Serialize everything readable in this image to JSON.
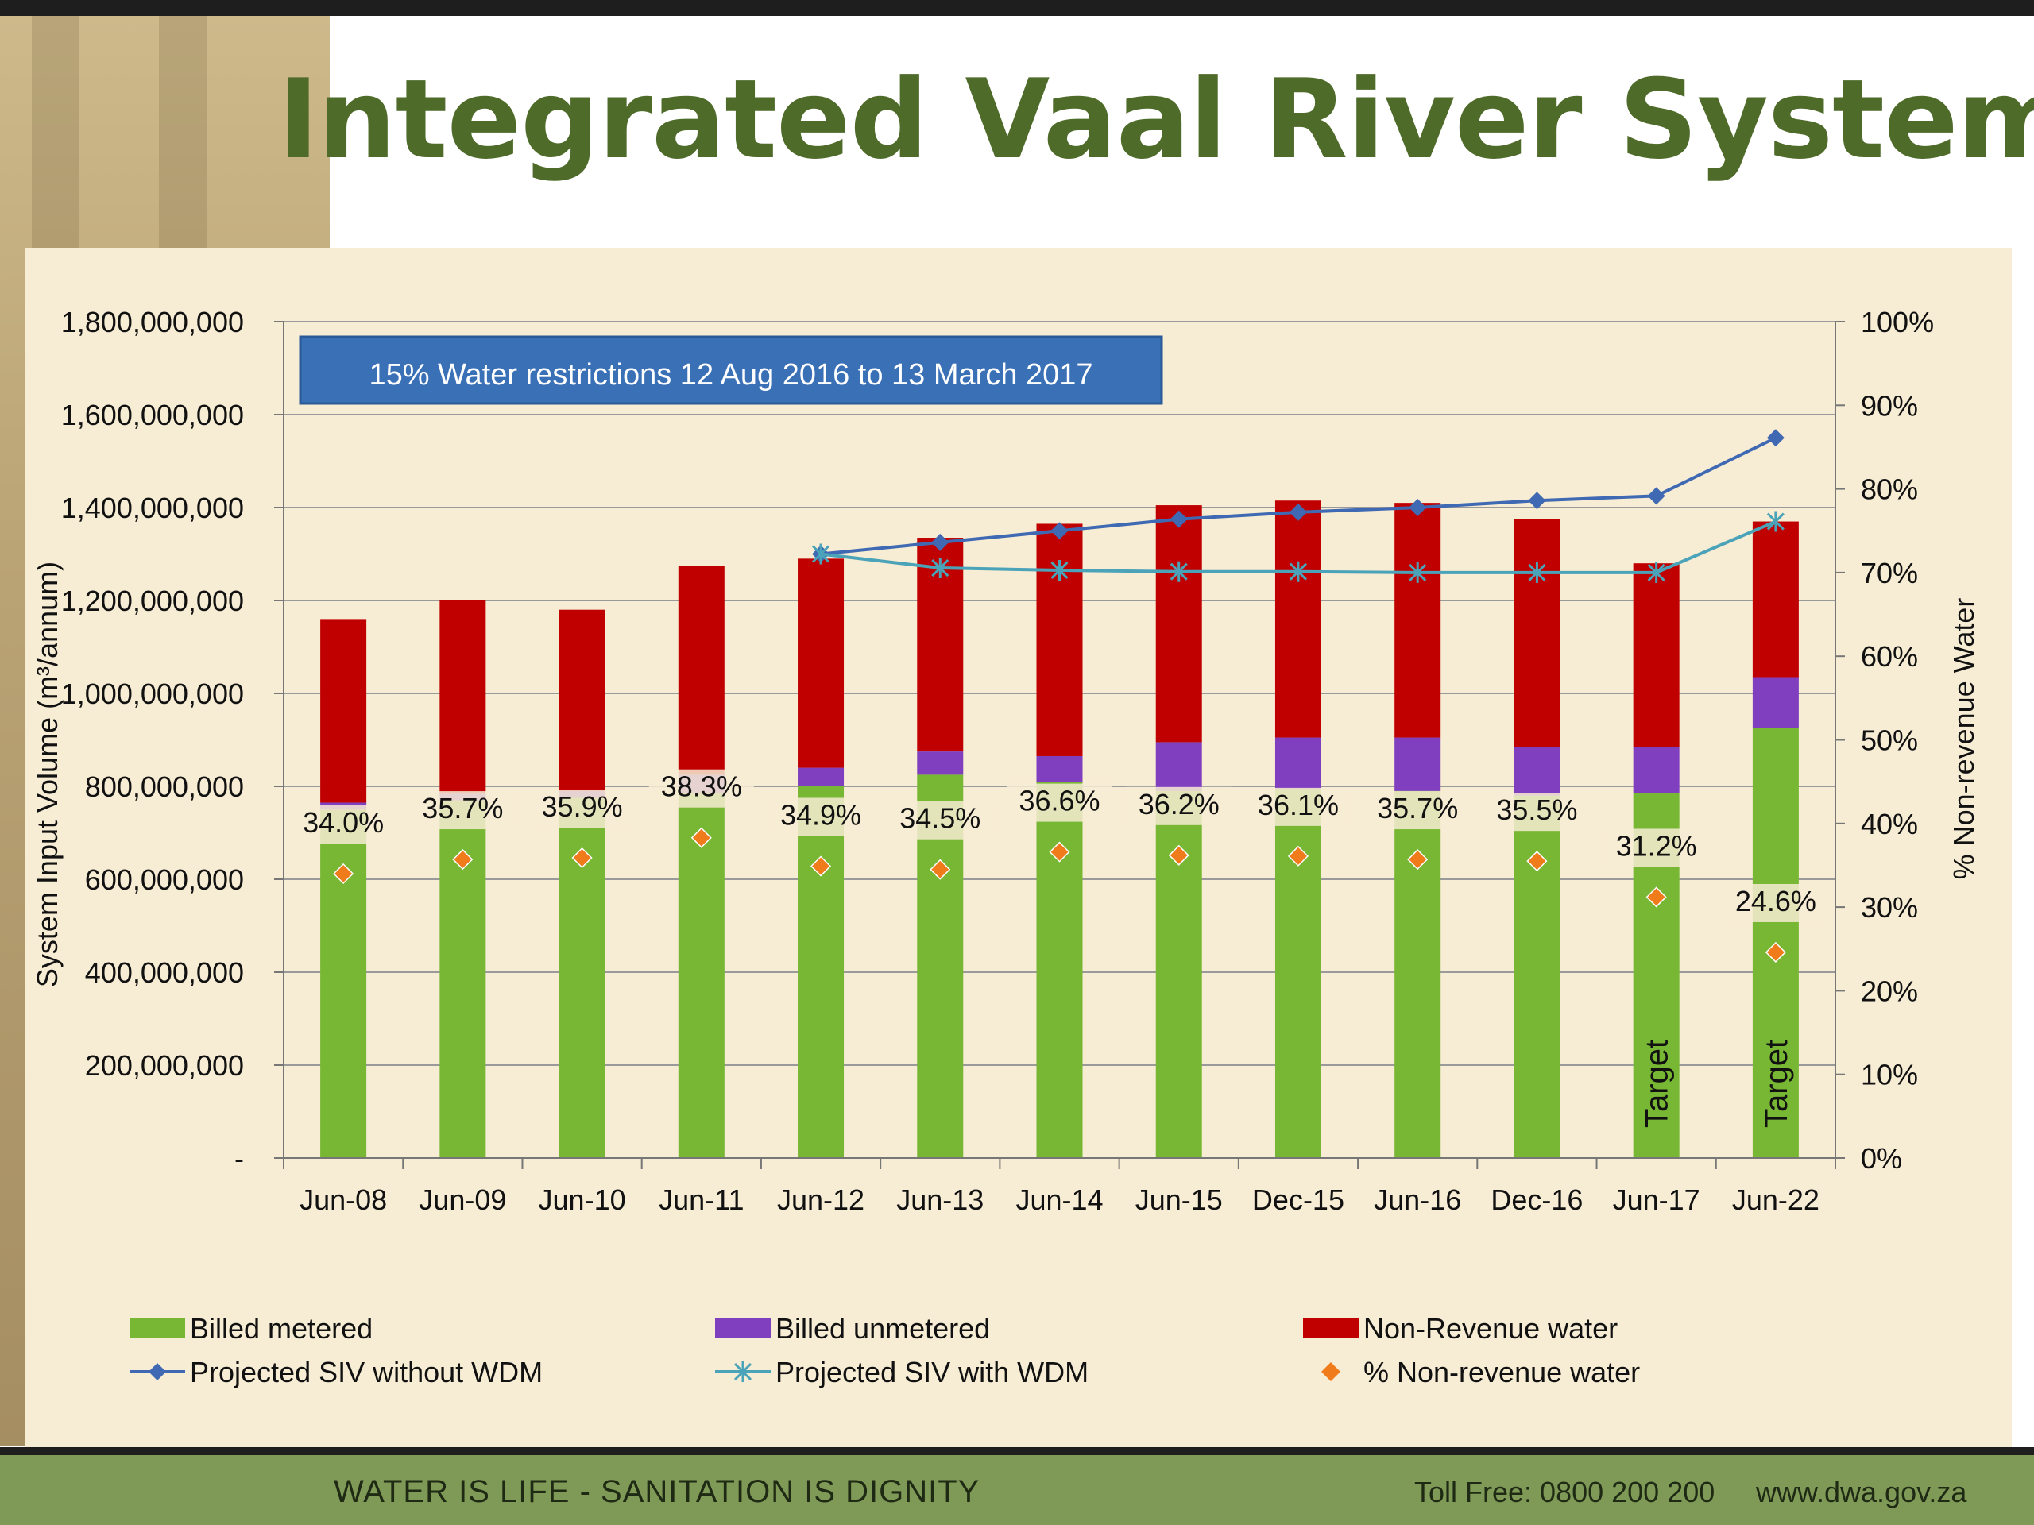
{
  "slide": {
    "title": "Integrated Vaal River System",
    "footer_slogan": "WATER IS LIFE - SANITATION IS DIGNITY",
    "footer_tollfree": "Toll Free: 0800 200 200",
    "footer_web": "www.dwa.gov.za"
  },
  "chart_data": {
    "type": "bar",
    "stacked": true,
    "annotation": "15% Water restrictions 12 Aug 2016 to 13 March 2017",
    "categories": [
      "Jun-08",
      "Jun-09",
      "Jun-10",
      "Jun-11",
      "Jun-12",
      "Jun-13",
      "Jun-14",
      "Jun-15",
      "Dec-15",
      "Jun-16",
      "Dec-16",
      "Jun-17",
      "Jun-22"
    ],
    "ylabel": "System Input Volume (m³/annum)",
    "ylabel2": "% Non-revenue Water",
    "ylim": [
      0,
      1800000000
    ],
    "ylim2": [
      0,
      100
    ],
    "y_ticks": [
      "-",
      "200,000,000",
      "400,000,000",
      "600,000,000",
      "800,000,000",
      "1,000,000,000",
      "1,200,000,000",
      "1,400,000,000",
      "1,600,000,000",
      "1,800,000,000"
    ],
    "y2_ticks": [
      "0%",
      "10%",
      "20%",
      "30%",
      "40%",
      "50%",
      "60%",
      "70%",
      "80%",
      "90%",
      "100%"
    ],
    "grid": true,
    "legend_position": "bottom",
    "series": [
      {
        "name": "Billed metered",
        "kind": "bar",
        "color": "#77b733",
        "values": [
          750000000,
          770000000,
          775000000,
          785000000,
          800000000,
          825000000,
          810000000,
          790000000,
          795000000,
          790000000,
          780000000,
          785000000,
          925000000
        ]
      },
      {
        "name": "Billed unmetered",
        "kind": "bar",
        "color": "#7f3fbf",
        "values": [
          15000000,
          15000000,
          15000000,
          40000000,
          40000000,
          50000000,
          55000000,
          105000000,
          110000000,
          115000000,
          105000000,
          100000000,
          110000000
        ]
      },
      {
        "name": "Non-Revenue water",
        "kind": "bar",
        "color": "#c00000",
        "values": [
          395000000,
          415000000,
          390000000,
          450000000,
          450000000,
          460000000,
          500000000,
          510000000,
          510000000,
          505000000,
          490000000,
          395000000,
          335000000
        ]
      },
      {
        "name": "Projected SIV without WDM",
        "kind": "line",
        "color": "#3f69b3",
        "marker": "diamond",
        "values": [
          null,
          null,
          null,
          null,
          1300000000,
          1325000000,
          1350000000,
          1375000000,
          1390000000,
          1400000000,
          1415000000,
          1425000000,
          1550000000
        ]
      },
      {
        "name": "Projected SIV with WDM",
        "kind": "line",
        "color": "#4aa3b8",
        "marker": "star",
        "values": [
          null,
          null,
          null,
          null,
          1300000000,
          1270000000,
          1265000000,
          1262000000,
          1262000000,
          1260000000,
          1260000000,
          1260000000,
          1370000000
        ]
      },
      {
        "name": "% Non-revenue water",
        "kind": "scatter",
        "axis": "right",
        "color": "#f07b1a",
        "marker": "diamond",
        "values": [
          34.0,
          35.7,
          35.9,
          38.3,
          34.9,
          34.5,
          36.6,
          36.2,
          36.1,
          35.7,
          35.5,
          31.2,
          24.6
        ],
        "labels": [
          "34.0%",
          "35.7%",
          "35.9%",
          "38.3%",
          "34.9%",
          "34.5%",
          "36.6%",
          "36.2%",
          "36.1%",
          "35.7%",
          "35.5%",
          "31.2%",
          "24.6%"
        ]
      }
    ],
    "bar_annotations": [
      {
        "category": "Jun-17",
        "text": "Target"
      },
      {
        "category": "Jun-22",
        "text": "Target"
      }
    ]
  }
}
